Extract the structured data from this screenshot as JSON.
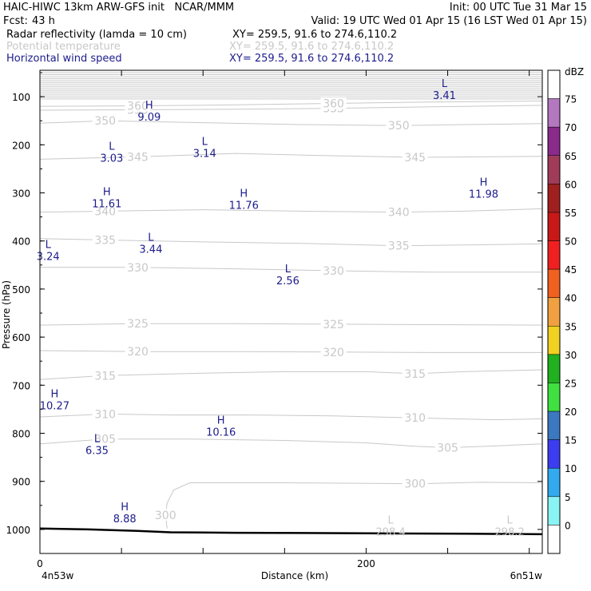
{
  "header": {
    "title": "HAIC-HIWC 13km ARW-GFS init   NCAR/MMM",
    "init": "Init: 00 UTC Tue 31 Mar 15",
    "fcst_label": "Fcst:",
    "fcst_value": "43 h",
    "valid": "Valid: 19 UTC Wed 01 Apr 15 (16 LST Wed 01 Apr 15)",
    "field1_name": "Radar reflectivity (lamda = 10 cm)",
    "field1_xy": "XY= 259.5, 91.6 to 274.6,110.2",
    "field2_name": "Potential temperature",
    "field2_xy": "XY= 259.5, 91.6 to 274.6,110.2",
    "field3_name": "Horizontal wind speed",
    "field3_xy": "XY= 259.5, 91.6 to 274.6,110.2"
  },
  "chart_data": {
    "type": "cross-section",
    "xlabel": "Distance (km)",
    "ylabel": "Pressure (hPa)",
    "xlim": [
      0,
      308
    ],
    "ylim": [
      1050,
      45
    ],
    "x_ticks": [
      "0",
      "200"
    ],
    "y_ticks": [
      "100",
      "200",
      "300",
      "400",
      "500",
      "600",
      "700",
      "800",
      "900",
      "1000"
    ],
    "left_endpoint": "4n53w",
    "right_endpoint": "6n51w",
    "colorbar": {
      "unit": "dBZ",
      "levels": [
        "-5",
        "0",
        "5",
        "10",
        "15",
        "20",
        "25",
        "30",
        "35",
        "40",
        "45",
        "50",
        "55",
        "60",
        "65",
        "70",
        "75",
        "80"
      ],
      "labels": [
        "0",
        "5",
        "10",
        "15",
        "20",
        "25",
        "30",
        "35",
        "40",
        "45",
        "50",
        "55",
        "60",
        "65",
        "70",
        "75"
      ],
      "colors": [
        "#ffffff",
        "#8af4f4",
        "#33aaf0",
        "#3c3cf0",
        "#3c78c0",
        "#40e040",
        "#20b020",
        "#f0d020",
        "#f0a040",
        "#f06020",
        "#f02020",
        "#c81818",
        "#a02020",
        "#a03c5a",
        "#8a2a8a",
        "#b478c0",
        "#ffffff"
      ]
    },
    "terrain_pressure": [
      [
        0,
        998
      ],
      [
        30,
        1000
      ],
      [
        60,
        1003
      ],
      [
        80,
        1006
      ],
      [
        120,
        1007
      ],
      [
        200,
        1008
      ],
      [
        260,
        1009
      ],
      [
        308,
        1010
      ]
    ],
    "theta_contours": [
      {
        "label": "300",
        "points": [
          [
            78,
            998
          ],
          [
            77,
            970
          ],
          [
            78,
            945
          ],
          [
            82,
            918
          ],
          [
            92,
            903
          ],
          [
            150,
            903
          ],
          [
            230,
            905
          ],
          [
            270,
            902
          ],
          [
            308,
            903
          ]
        ]
      },
      {
        "label": "305",
        "points": [
          [
            0,
            822
          ],
          [
            40,
            812
          ],
          [
            90,
            812
          ],
          [
            150,
            815
          ],
          [
            200,
            820
          ],
          [
            230,
            827
          ],
          [
            250,
            830
          ],
          [
            280,
            826
          ],
          [
            308,
            822
          ]
        ]
      },
      {
        "label": "310",
        "points": [
          [
            0,
            766
          ],
          [
            40,
            760
          ],
          [
            80,
            762
          ],
          [
            130,
            762
          ],
          [
            180,
            764
          ],
          [
            230,
            768
          ],
          [
            280,
            772
          ],
          [
            308,
            770
          ]
        ]
      },
      {
        "label": "315",
        "points": [
          [
            0,
            688
          ],
          [
            40,
            680
          ],
          [
            100,
            675
          ],
          [
            150,
            672
          ],
          [
            200,
            672
          ],
          [
            230,
            676
          ],
          [
            260,
            672
          ],
          [
            308,
            668
          ]
        ]
      },
      {
        "label": "320",
        "points": [
          [
            0,
            628
          ],
          [
            60,
            630
          ],
          [
            120,
            630
          ],
          [
            180,
            631
          ],
          [
            240,
            632
          ],
          [
            308,
            632
          ]
        ]
      },
      {
        "label": "325",
        "points": [
          [
            0,
            575
          ],
          [
            60,
            572
          ],
          [
            120,
            572
          ],
          [
            180,
            573
          ],
          [
            240,
            574
          ],
          [
            308,
            575
          ]
        ]
      },
      {
        "label": "330",
        "points": [
          [
            0,
            455
          ],
          [
            60,
            455
          ],
          [
            120,
            458
          ],
          [
            180,
            462
          ],
          [
            240,
            465
          ],
          [
            308,
            465
          ]
        ]
      },
      {
        "label": "335",
        "points": [
          [
            0,
            395
          ],
          [
            40,
            398
          ],
          [
            100,
            402
          ],
          [
            160,
            405
          ],
          [
            220,
            410
          ],
          [
            270,
            408
          ],
          [
            308,
            406
          ]
        ]
      },
      {
        "label": "340",
        "points": [
          [
            0,
            340
          ],
          [
            40,
            338
          ],
          [
            100,
            335
          ],
          [
            160,
            338
          ],
          [
            220,
            340
          ],
          [
            260,
            338
          ],
          [
            308,
            333
          ]
        ]
      },
      {
        "label": "345",
        "points": [
          [
            0,
            230
          ],
          [
            60,
            225
          ],
          [
            120,
            218
          ],
          [
            170,
            222
          ],
          [
            230,
            226
          ],
          [
            270,
            225
          ],
          [
            308,
            224
          ]
        ]
      },
      {
        "label": "350",
        "points": [
          [
            0,
            155
          ],
          [
            40,
            150
          ],
          [
            100,
            154
          ],
          [
            160,
            158
          ],
          [
            220,
            160
          ],
          [
            260,
            158
          ],
          [
            308,
            156
          ]
        ]
      },
      {
        "label": "355",
        "points": [
          [
            0,
            128
          ],
          [
            60,
            127
          ],
          [
            120,
            126
          ],
          [
            180,
            124
          ],
          [
            240,
            121
          ],
          [
            308,
            118
          ]
        ]
      },
      {
        "label": "360",
        "points": [
          [
            0,
            120
          ],
          [
            60,
            119
          ],
          [
            120,
            117
          ],
          [
            180,
            114
          ],
          [
            240,
            111
          ],
          [
            308,
            109
          ]
        ]
      }
    ],
    "wind_extrema": [
      {
        "kind": "H",
        "value": "9.09",
        "x": 67,
        "p": 125
      },
      {
        "kind": "L",
        "value": "3.41",
        "x": 248,
        "p": 80
      },
      {
        "kind": "L",
        "value": "3.03",
        "x": 44,
        "p": 210
      },
      {
        "kind": "L",
        "value": "3.14",
        "x": 101,
        "p": 200
      },
      {
        "kind": "H",
        "value": "11.61",
        "x": 41,
        "p": 305
      },
      {
        "kind": "H",
        "value": "11.76",
        "x": 125,
        "p": 308
      },
      {
        "kind": "H",
        "value": "11.98",
        "x": 272,
        "p": 285
      },
      {
        "kind": "L",
        "value": "3.24",
        "x": 5,
        "p": 415
      },
      {
        "kind": "L",
        "value": "3.44",
        "x": 68,
        "p": 400
      },
      {
        "kind": "L",
        "value": "2.56",
        "x": 152,
        "p": 465
      },
      {
        "kind": "H",
        "value": "10.27",
        "x": 9,
        "p": 725
      },
      {
        "kind": "H",
        "value": "10.16",
        "x": 111,
        "p": 780
      },
      {
        "kind": "L",
        "value": "6.35",
        "x": 35,
        "p": 818
      },
      {
        "kind": "H",
        "value": "8.88",
        "x": 52,
        "p": 960
      }
    ],
    "theta_extrema": [
      {
        "kind": "L",
        "value": "298.4",
        "x": 215,
        "p": 988
      },
      {
        "kind": "L",
        "value": "298.2",
        "x": 288,
        "p": 988
      }
    ]
  },
  "colors": {
    "theta": "#c8c8c8",
    "wind": "#1c1c8c",
    "axis": "#000000",
    "terrain": "#000000"
  }
}
